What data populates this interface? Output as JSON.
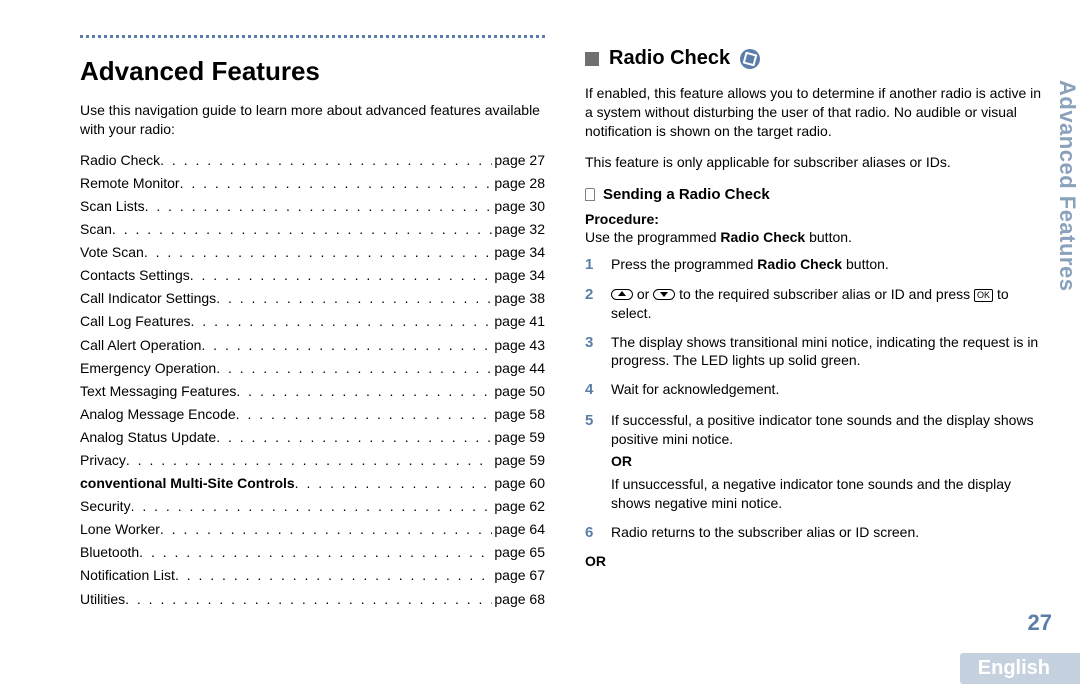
{
  "colors": {
    "accent": "#5b7ea8",
    "side_text": "#8aa1bb",
    "lang_bg": "#c6d1df",
    "lang_fg": "#ffffff",
    "text": "#000000",
    "section_marker": "#6f6f6f"
  },
  "left": {
    "heading": "Advanced Features",
    "intro": "Use this navigation guide to learn more about advanced features available with your radio:",
    "toc": [
      {
        "label": "Radio Check",
        "page": "page 27",
        "bold": false
      },
      {
        "label": "Remote Monitor",
        "page": "page 28",
        "bold": false
      },
      {
        "label": "Scan Lists",
        "page": "page 30",
        "bold": false
      },
      {
        "label": "Scan",
        "page": "page 32",
        "bold": false
      },
      {
        "label": "Vote Scan",
        "page": "page 34",
        "bold": false
      },
      {
        "label": "Contacts Settings",
        "page": "page 34",
        "bold": false
      },
      {
        "label": "Call Indicator Settings",
        "page": "page 38",
        "bold": false
      },
      {
        "label": "Call Log Features",
        "page": "page 41",
        "bold": false
      },
      {
        "label": "Call Alert Operation",
        "page": "page 43",
        "bold": false
      },
      {
        "label": "Emergency Operation",
        "page": "page 44",
        "bold": false
      },
      {
        "label": "Text Messaging Features",
        "page": "page 50",
        "bold": false
      },
      {
        "label": "Analog Message Encode",
        "page": "page 58",
        "bold": false
      },
      {
        "label": "Analog Status Update",
        "page": "page 59",
        "bold": false
      },
      {
        "label": "Privacy",
        "page": "page 59",
        "bold": false
      },
      {
        "label": "conventional  Multi-Site Controls",
        "page": "page 60",
        "bold": true
      },
      {
        "label": "Security",
        "page": "page 62",
        "bold": false
      },
      {
        "label": "Lone Worker",
        "page": "page 64",
        "bold": false
      },
      {
        "label": "Bluetooth",
        "page": "page 65",
        "bold": false
      },
      {
        "label": "Notification List",
        "page": "page 67",
        "bold": false
      },
      {
        "label": "Utilities",
        "page": "page 68",
        "bold": false
      }
    ]
  },
  "right": {
    "section_title": "Radio Check",
    "para1": "If enabled, this feature allows you to determine if another radio is active in a system without disturbing the user of that radio. No audible or visual notification is shown on the target radio.",
    "para2": "This feature is only applicable for subscriber aliases or IDs.",
    "sub_title": "Sending a Radio Check",
    "procedure_label": "Procedure:",
    "procedure_intro_pre": "Use the programmed ",
    "procedure_intro_bold": "Radio Check",
    "procedure_intro_post": " button.",
    "steps": {
      "s1_pre": "Press the programmed ",
      "s1_bold": "Radio Check",
      "s1_post": " button.",
      "s2_mid": " or ",
      "s2_tail": " to the required subscriber alias or ID and press ",
      "s2_key": "OK",
      "s2_end": " to select.",
      "s3": "The display shows transitional mini notice, indicating the request is in progress. The LED lights up solid green.",
      "s4": "Wait for acknowledgement.",
      "s5a": "If successful, a positive indicator tone sounds and the display shows positive mini notice.",
      "s5_or": "OR",
      "s5b": "If unsuccessful, a negative indicator tone sounds and the display shows negative mini notice.",
      "s6": "Radio returns to the subscriber alias or ID screen."
    },
    "bottom_or": "OR"
  },
  "side_tab": "Advanced Features",
  "page_number": "27",
  "language": "English"
}
